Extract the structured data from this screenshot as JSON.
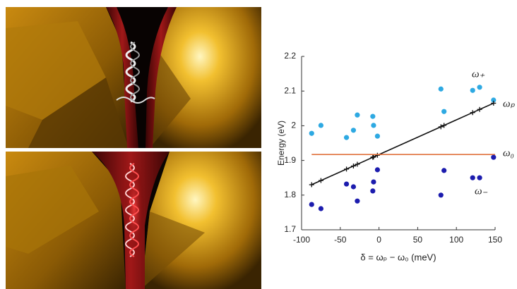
{
  "chart_data": {
    "type": "scatter",
    "xlabel": "δ = ωₚ − ω₀ (meV)",
    "ylabel": "Energy (eV)",
    "xlim": [
      -100,
      150
    ],
    "xticks": [
      -100,
      -50,
      0,
      50,
      100,
      150
    ],
    "ylim": [
      1.7,
      2.2
    ],
    "yticks": [
      1.7,
      1.8,
      1.9,
      2,
      2.1,
      2.2
    ],
    "series": [
      {
        "name": "ω₊",
        "color": "#2ea9e2",
        "marker": "circle",
        "line": false,
        "x": [
          -87,
          -75,
          -42,
          -33,
          -28,
          -8,
          -7,
          -2,
          80,
          84,
          121,
          130,
          148
        ],
        "values": [
          1.978,
          2.001,
          1.966,
          1.987,
          2.031,
          2.027,
          2.001,
          1.97,
          2.106,
          2.041,
          2.102,
          2.111,
          2.074
        ]
      },
      {
        "name": "ωₚ",
        "color": "#111111",
        "marker": "plus",
        "line": true,
        "x": [
          -87,
          -75,
          -42,
          -33,
          -28,
          -8,
          -7,
          -2,
          80,
          84,
          121,
          130,
          148
        ],
        "values": [
          1.83,
          1.842,
          1.875,
          1.884,
          1.889,
          1.909,
          1.91,
          1.915,
          1.997,
          2.001,
          2.038,
          2.047,
          2.065
        ]
      },
      {
        "name": "ω₀",
        "color": "#e0703a",
        "marker": "none",
        "line": true,
        "x": [
          -87,
          150
        ],
        "values": [
          1.917,
          1.917
        ]
      },
      {
        "name": "ω₋",
        "color": "#1c1cae",
        "marker": "circle",
        "line": false,
        "x": [
          -87,
          -75,
          -42,
          -33,
          -28,
          -8,
          -7,
          -2,
          80,
          84,
          121,
          130,
          148
        ],
        "values": [
          1.773,
          1.761,
          1.832,
          1.824,
          1.783,
          1.812,
          1.838,
          1.873,
          1.8,
          1.871,
          1.85,
          1.85,
          1.909
        ]
      }
    ]
  }
}
